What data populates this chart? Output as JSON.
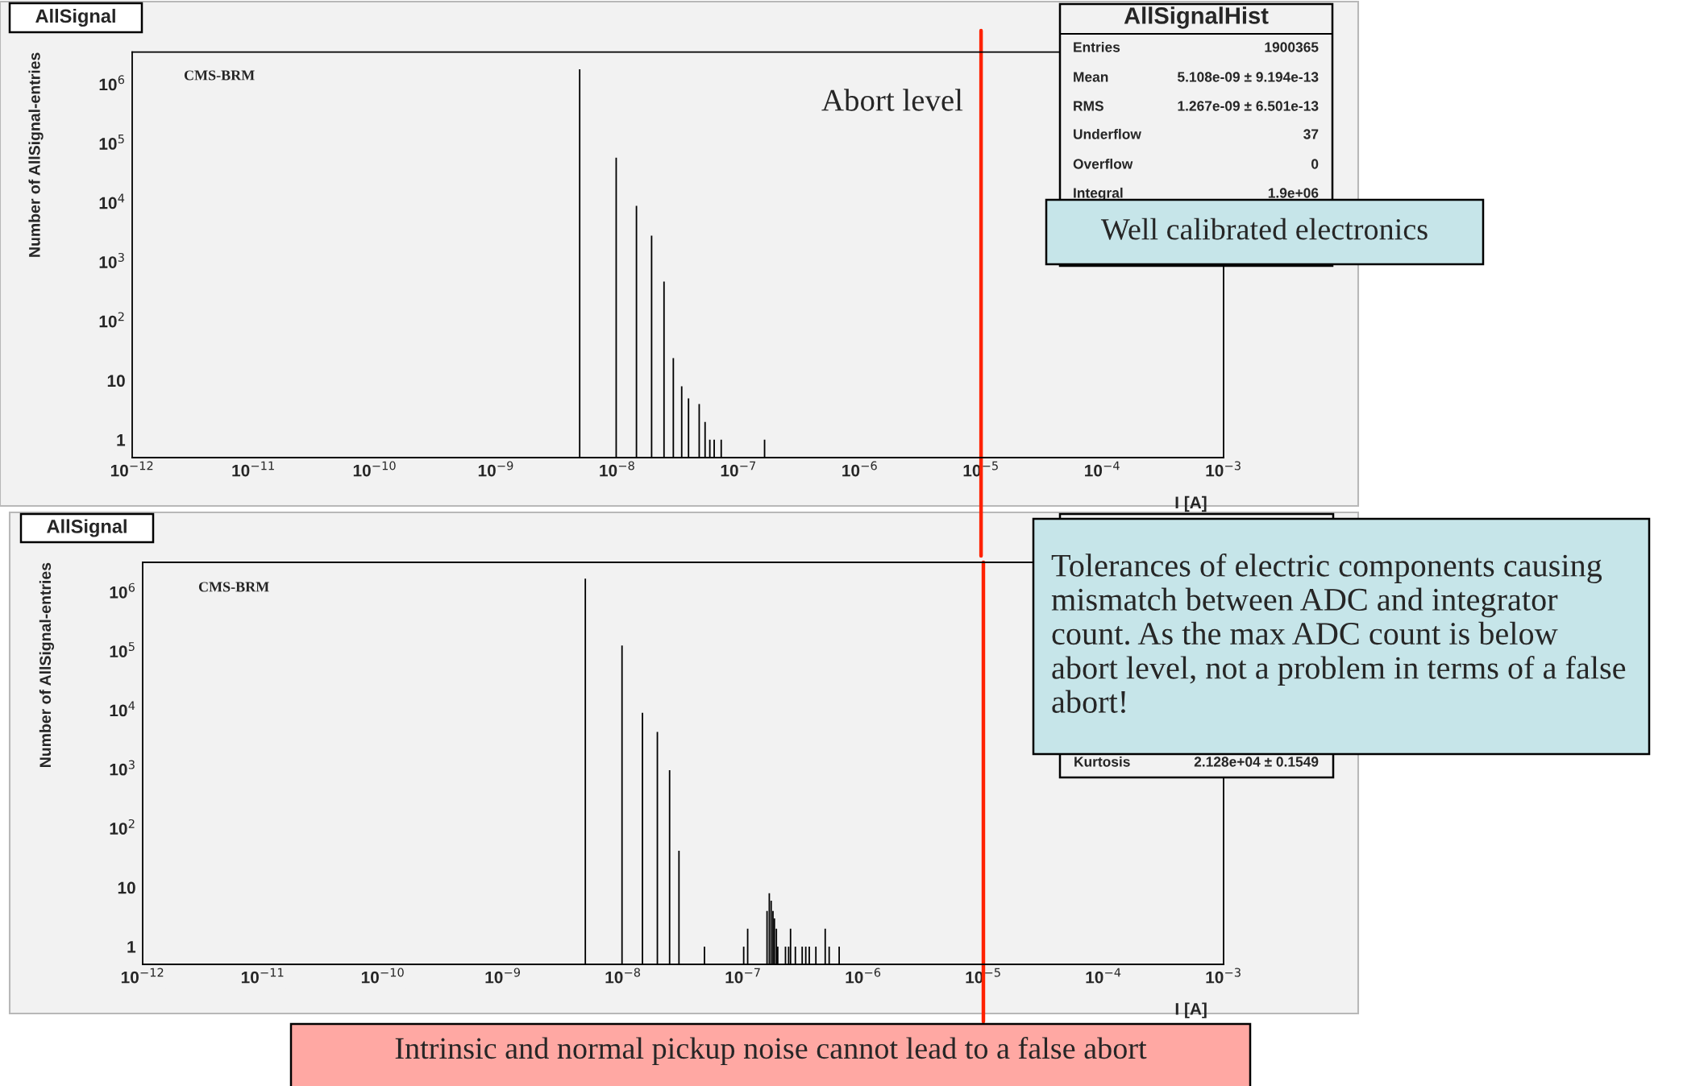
{
  "chart_data": [
    {
      "type": "bar",
      "title": "AllSignal",
      "xlabel": "I [A]",
      "ylabel": "Number of AllSignal-entries",
      "log": "xy",
      "color": "#000000",
      "x": [
        4.9e-09,
        9.8e-09,
        1.44e-08,
        1.92e-08,
        2.43e-08,
        2.9e-08,
        3.4e-08,
        3.87e-08,
        4.74e-08,
        5.3e-08,
        5.8e-08,
        6.3e-08,
        7.2e-08,
        1.64e-07
      ],
      "values": [
        1800000,
        58000,
        8900,
        2800,
        470,
        24,
        8,
        5,
        4,
        2,
        1,
        1,
        1,
        1
      ],
      "xlim": [
        1e-12,
        0.001
      ],
      "ylim": [
        0.5,
        3500000
      ],
      "xticks": [
        {
          "value": 1e-12,
          "label": "10$^{−12}$"
        },
        {
          "value": 1e-11,
          "label": "10$^{−11}$"
        },
        {
          "value": 1e-10,
          "label": "10$^{−10}$"
        },
        {
          "value": 1e-09,
          "label": "10$^{−9}$"
        },
        {
          "value": 1e-08,
          "label": "10$^{−8}$"
        },
        {
          "value": 1e-07,
          "label": "10$^{−7}$"
        },
        {
          "value": 1e-06,
          "label": "10$^{−6}$"
        },
        {
          "value": 1e-05,
          "label": "10$^{−5}$"
        },
        {
          "value": 0.0001,
          "label": "10$^{−4}$"
        },
        {
          "value": 0.001,
          "label": "10$^{−3}$"
        }
      ],
      "yticks": [
        1,
        10,
        {
          "value": 100,
          "label": "10$^{2}$"
        },
        {
          "value": 1000,
          "label": "10$^{3}$"
        },
        {
          "value": 10000,
          "label": "10$^{4}$"
        },
        {
          "value": 100000,
          "label": "10$^{5}$"
        },
        {
          "value": 1000000,
          "label": "10$^{6}$"
        }
      ],
      "ref_lines": [
        {
          "axis": "x",
          "value": 1e-05,
          "label": "Abort level",
          "color": "#ff2200"
        }
      ],
      "annotations": [
        "CMS-BRM",
        "AllSignalHist",
        "Entries",
        "1900365",
        "Mean",
        "5.108e-09 ± 9.194e-13",
        "RMS",
        "1.267e-09 ± 6.501e-13",
        "Underflow",
        "37",
        "Overflow",
        "0",
        "Integral",
        "1.9e+06",
        "Well calibrated electronics"
      ]
    },
    {
      "type": "bar",
      "title": "AllSignal",
      "xlabel": "I [A]",
      "ylabel": "Number of AllSignal-entries",
      "log": "xy",
      "color": "#000000",
      "x": [
        4.85e-09,
        9.8e-09,
        1.45e-08,
        1.93e-08,
        2.44e-08,
        2.92e-08,
        4.76e-08,
        1.01e-07,
        1.09e-07,
        1.58e-07,
        1.65e-07,
        1.71e-07,
        1.77e-07,
        1.82e-07,
        1.89e-07,
        1.94e-07,
        2.25e-07,
        2.39e-07,
        2.48e-07,
        2.72e-07,
        3.1e-07,
        3.32e-07,
        3.55e-07,
        4.03e-07,
        4.82e-07,
        5.2e-07,
        6.3e-07
      ],
      "values": [
        1700000,
        125000,
        9100,
        4300,
        970,
        42,
        1,
        1,
        2,
        4,
        8,
        6,
        4,
        3,
        2,
        1,
        1,
        1,
        2,
        1,
        1,
        1,
        1,
        1,
        2,
        1,
        1
      ],
      "xlim": [
        1e-12,
        0.001
      ],
      "ylim": [
        0.5,
        3200000
      ],
      "xticks": [
        {
          "value": 1e-12,
          "label": "10$^{−12}$"
        },
        {
          "value": 1e-11,
          "label": "10$^{−11}$"
        },
        {
          "value": 1e-10,
          "label": "10$^{−10}$"
        },
        {
          "value": 1e-09,
          "label": "10$^{−9}$"
        },
        {
          "value": 1e-08,
          "label": "10$^{−8}$"
        },
        {
          "value": 1e-07,
          "label": "10$^{−7}$"
        },
        {
          "value": 1e-06,
          "label": "10$^{−6}$"
        },
        {
          "value": 1e-05,
          "label": "10$^{−5}$"
        },
        {
          "value": 0.0001,
          "label": "10$^{−4}$"
        },
        {
          "value": 0.001,
          "label": "10$^{−3}$"
        }
      ],
      "yticks": [
        1,
        10,
        {
          "value": 100,
          "label": "10$^{2}$"
        },
        {
          "value": 1000,
          "label": "10$^{3}$"
        },
        {
          "value": 10000,
          "label": "10$^{4}$"
        },
        {
          "value": 100000,
          "label": "10$^{5}$"
        },
        {
          "value": 1000000,
          "label": "10$^{6}$"
        }
      ],
      "ref_lines": [
        {
          "axis": "x",
          "value": 1e-05,
          "color": "#ff2200"
        }
      ],
      "annotations": [
        "CMS-BRM",
        "Kurtosis",
        "2.128e+04 ± 0.1549",
        "Tolerances of electric components causing mismatch between ADC and integrator count. As the max ADC count is below abort level, not a problem in terms of a false abort!",
        "Intrinsic and normal pickup noise cannot lead to a false abort"
      ]
    }
  ]
}
